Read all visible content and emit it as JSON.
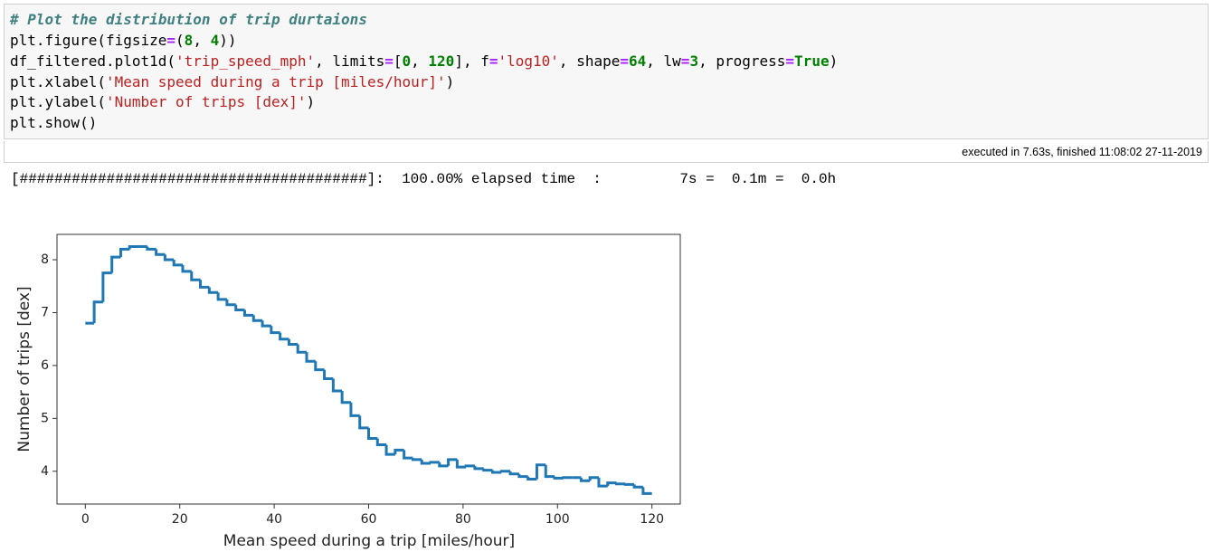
{
  "code": {
    "lines": [
      [
        "# Plot the distribution of trip durtaions"
      ],
      [
        "plt.figure(figsize",
        "=",
        "(",
        "8",
        ", ",
        "4",
        "))"
      ],
      [
        "df_filtered.plot1d(",
        "'trip_speed_mph'",
        ", limits",
        "=",
        "[",
        "0",
        ", ",
        "120",
        "], f",
        "=",
        "'log10'",
        ", shape",
        "=",
        "64",
        ", lw",
        "=",
        "3",
        ", progress",
        "=",
        "True",
        ")"
      ],
      [
        "plt.xlabel(",
        "'Mean speed during a trip [miles/hour]'",
        ")"
      ],
      [
        "plt.ylabel(",
        "'Number of trips [dex]'",
        ")"
      ],
      [
        "plt.show()"
      ]
    ],
    "execution_info": "executed in 7.63s, finished 11:08:02 27-11-2019"
  },
  "output": {
    "progress": "[########################################]:  100.00% elapsed time  :         7s =  0.1m =  0.0h"
  },
  "chart_data": {
    "type": "histogram",
    "xlabel": "Mean speed during a trip [miles/hour]",
    "ylabel": "Number of trips [dex]",
    "bins": [
      0,
      1.875,
      3.75,
      5.625,
      7.5,
      9.375,
      11.25,
      13.125,
      15,
      16.875,
      18.75,
      20.625,
      22.5,
      24.375,
      26.25,
      28.125,
      30,
      31.875,
      33.75,
      35.625,
      37.5,
      39.375,
      41.25,
      43.125,
      45,
      46.875,
      48.75,
      50.625,
      52.5,
      54.375,
      56.25,
      58.125,
      60,
      61.875,
      63.75,
      65.625,
      67.5,
      69.375,
      71.25,
      73.125,
      75,
      76.875,
      78.75,
      80.625,
      82.5,
      84.375,
      86.25,
      88.125,
      90,
      91.875,
      93.75,
      95.625,
      97.5,
      99.375,
      101.25,
      103.125,
      105,
      106.875,
      108.75,
      110.625,
      112.5,
      114.375,
      116.25,
      118.125,
      120
    ],
    "values": [
      6.8,
      7.2,
      7.75,
      8.05,
      8.2,
      8.25,
      8.25,
      8.2,
      8.1,
      8.0,
      7.9,
      7.78,
      7.62,
      7.48,
      7.38,
      7.25,
      7.15,
      7.05,
      6.95,
      6.85,
      6.75,
      6.62,
      6.5,
      6.4,
      6.25,
      6.08,
      5.92,
      5.75,
      5.52,
      5.3,
      5.05,
      4.82,
      4.62,
      4.5,
      4.32,
      4.4,
      4.25,
      4.22,
      4.15,
      4.17,
      4.1,
      4.22,
      4.08,
      4.1,
      4.05,
      4.02,
      3.98,
      4.0,
      3.95,
      3.9,
      3.85,
      4.12,
      3.9,
      3.87,
      3.88,
      3.88,
      3.82,
      3.88,
      3.72,
      3.78,
      3.76,
      3.75,
      3.7,
      3.58
    ],
    "color": "#1f77b4",
    "xlim": [
      -6,
      126
    ],
    "ylim": [
      3.38,
      8.48
    ],
    "xticks": [
      0,
      20,
      40,
      60,
      80,
      100,
      120
    ],
    "yticks": [
      4,
      5,
      6,
      7,
      8
    ]
  }
}
